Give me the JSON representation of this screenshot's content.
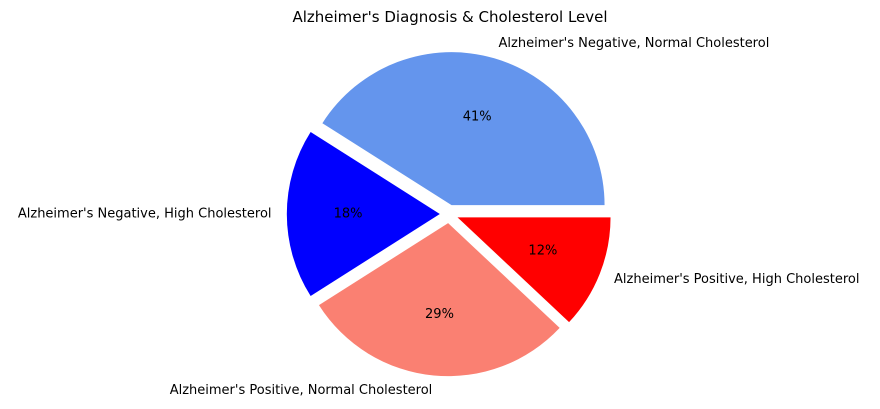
{
  "chart_data": {
    "type": "pie",
    "title": "Alzheimer's Diagnosis & Cholesterol Level",
    "slices": [
      {
        "label": "Alzheimer's Negative, Normal Cholesterol",
        "value": 41,
        "percent_label": "41%",
        "color": "#6495ED"
      },
      {
        "label": "Alzheimer's Negative, High Cholesterol",
        "value": 18,
        "percent_label": "18%",
        "color": "#0000FF"
      },
      {
        "label": "Alzheimer's Positive, Normal Cholesterol",
        "value": 29,
        "percent_label": "29%",
        "color": "#FA8072"
      },
      {
        "label": "Alzheimer's Positive, High Cholesterol",
        "value": 12,
        "percent_label": "12%",
        "color": "#FF0000"
      }
    ],
    "start_angle_deg": 0,
    "direction": "counterclockwise",
    "exploded": true,
    "legend": "none"
  }
}
